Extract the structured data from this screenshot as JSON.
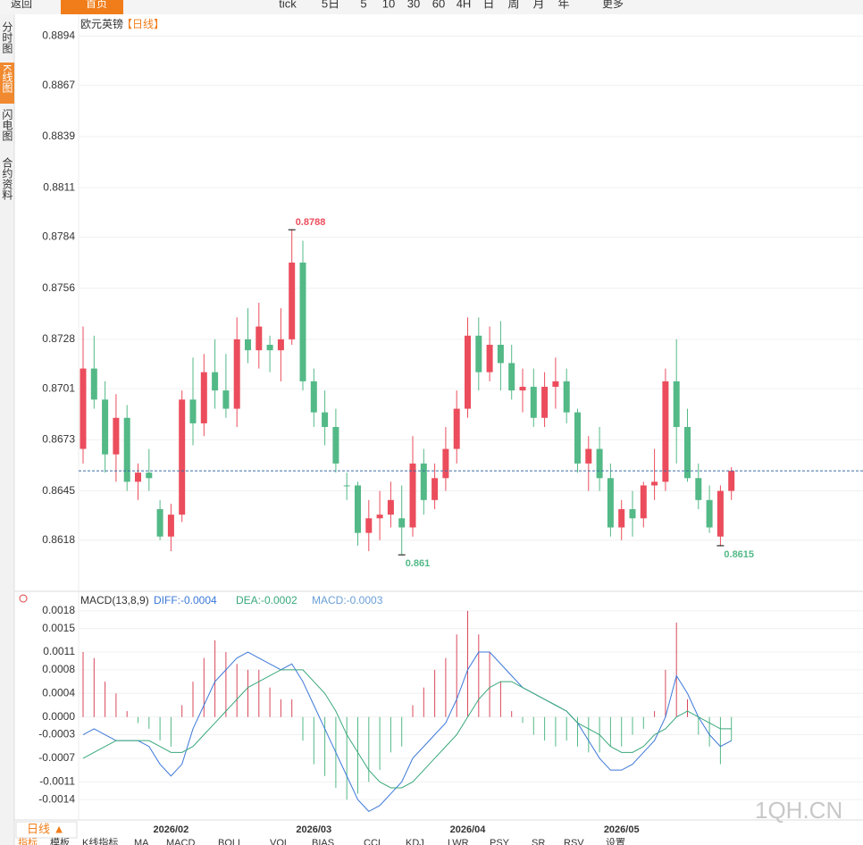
{
  "toolbar": {
    "back": "返回",
    "home": "首页",
    "items": [
      "tick",
      "5日",
      "5",
      "10",
      "30",
      "60",
      "4H",
      "日",
      "周",
      "月",
      "年"
    ],
    "more": "更多"
  },
  "side_tabs": [
    "分时图",
    "K线图",
    "闪电图",
    "合约资料"
  ],
  "chart_data": [
    {
      "type": "candlestick",
      "title": "欧元英镑",
      "period": "【日线】",
      "up_color": "#eb4d5c",
      "down_color": "#53b987",
      "grid": true,
      "categories": [
        null,
        null,
        null,
        null,
        null,
        null,
        null,
        null,
        "2026/02",
        null,
        null,
        null,
        null,
        null,
        null,
        null,
        null,
        null,
        null,
        null,
        null,
        "2026/03",
        null,
        null,
        null,
        null,
        null,
        null,
        null,
        null,
        null,
        null,
        null,
        null,
        null,
        "2026/04",
        null,
        null,
        null,
        null,
        null,
        null,
        null,
        null,
        null,
        null,
        null,
        null,
        null,
        "2026/05",
        null,
        null,
        null,
        null,
        null,
        null,
        null,
        null,
        null,
        null
      ],
      "open": [
        0.8668,
        0.8712,
        0.8695,
        0.8665,
        0.8685,
        0.865,
        0.8655,
        0.8635,
        0.862,
        0.8632,
        0.8695,
        0.8682,
        0.871,
        0.87,
        0.869,
        0.8728,
        0.8722,
        0.8725,
        0.8722,
        0.8728,
        0.877,
        0.8705,
        0.8688,
        0.868,
        0.8648,
        0.8648,
        0.8622,
        0.863,
        0.8632,
        0.863,
        0.8625,
        0.866,
        0.864,
        0.8652,
        0.8668,
        0.869,
        0.873,
        0.871,
        0.8725,
        0.8715,
        0.87,
        0.8702,
        0.8685,
        0.8702,
        0.8705,
        0.8688,
        0.866,
        0.8668,
        0.8652,
        0.8625,
        0.8635,
        0.863,
        0.8648,
        0.865,
        0.8705,
        0.868,
        0.8652,
        0.864,
        0.862,
        0.8645
      ],
      "high": [
        0.8735,
        0.873,
        0.8705,
        0.8698,
        0.8692,
        0.866,
        0.8668,
        0.864,
        0.8638,
        0.87,
        0.8718,
        0.872,
        0.8728,
        0.872,
        0.874,
        0.8745,
        0.8748,
        0.873,
        0.8745,
        0.8788,
        0.8782,
        0.8712,
        0.87,
        0.869,
        0.8655,
        0.865,
        0.864,
        0.8645,
        0.865,
        0.8648,
        0.8675,
        0.8668,
        0.866,
        0.868,
        0.87,
        0.874,
        0.874,
        0.8735,
        0.8738,
        0.8725,
        0.8712,
        0.8712,
        0.871,
        0.8718,
        0.8712,
        0.869,
        0.8675,
        0.868,
        0.866,
        0.864,
        0.8645,
        0.865,
        0.8668,
        0.8712,
        0.8728,
        0.869,
        0.866,
        0.8648,
        0.8648,
        0.8658
      ],
      "low": [
        0.866,
        0.869,
        0.8655,
        0.865,
        0.8645,
        0.864,
        0.8645,
        0.8618,
        0.8612,
        0.8628,
        0.867,
        0.8675,
        0.869,
        0.8685,
        0.868,
        0.8715,
        0.8712,
        0.871,
        0.8705,
        0.8725,
        0.87,
        0.868,
        0.867,
        0.8655,
        0.864,
        0.8615,
        0.8612,
        0.8618,
        0.8625,
        0.861,
        0.862,
        0.8632,
        0.8635,
        0.8645,
        0.866,
        0.8685,
        0.87,
        0.8705,
        0.87,
        0.8695,
        0.8688,
        0.868,
        0.868,
        0.869,
        0.8682,
        0.8655,
        0.8645,
        0.8645,
        0.862,
        0.8618,
        0.862,
        0.8625,
        0.864,
        0.8645,
        0.866,
        0.865,
        0.8635,
        0.8622,
        0.8615,
        0.864
      ],
      "close": [
        0.8712,
        0.8695,
        0.8665,
        0.8685,
        0.865,
        0.8655,
        0.8652,
        0.862,
        0.8632,
        0.8695,
        0.8682,
        0.871,
        0.87,
        0.869,
        0.8728,
        0.8722,
        0.8735,
        0.8722,
        0.8728,
        0.877,
        0.8705,
        0.8688,
        0.868,
        0.866,
        0.8648,
        0.8622,
        0.863,
        0.8632,
        0.864,
        0.8625,
        0.866,
        0.864,
        0.8652,
        0.8668,
        0.869,
        0.873,
        0.871,
        0.8725,
        0.8715,
        0.87,
        0.8702,
        0.8685,
        0.8702,
        0.8705,
        0.8688,
        0.866,
        0.8668,
        0.8652,
        0.8625,
        0.8635,
        0.863,
        0.8648,
        0.865,
        0.8705,
        0.868,
        0.8652,
        0.864,
        0.8625,
        0.8645,
        0.8656
      ],
      "ylim": [
        0.8591,
        0.8904
      ],
      "yticks": [
        0.8894,
        0.8867,
        0.8839,
        0.8811,
        0.8784,
        0.8756,
        0.8728,
        0.8701,
        0.8673,
        0.8645,
        0.8618
      ],
      "annotations": [
        {
          "index": 19,
          "value": 0.8788,
          "color": "#eb4d5c",
          "at": "high"
        },
        {
          "index": 29,
          "value": 0.861,
          "color": "#53b987",
          "at": "low"
        },
        {
          "index": 58,
          "value": 0.8615,
          "color": "#53b987",
          "at": "low"
        }
      ]
    },
    {
      "type": "macd",
      "title": "MACD(13,8,9)",
      "grid": true,
      "ylim": [
        -0.0017,
        0.0021
      ],
      "yticks": [
        0.0018,
        0.0015,
        0.0011,
        0.0008,
        0.0004,
        {
          "value": 0,
          "label": "0.0000"
        },
        -0.0003,
        -0.0007,
        -0.0011,
        -0.0014
      ],
      "series": [
        {
          "label": "DIFF:-0.0004",
          "color": "#3c78d8",
          "values": [
            -0.0003,
            -0.0002,
            -0.0003,
            -0.0004,
            -0.0004,
            -0.0004,
            -0.0005,
            -0.0008,
            -0.001,
            -0.0008,
            -0.0002,
            0.0002,
            0.0006,
            0.0008,
            0.001,
            0.0011,
            0.001,
            0.0009,
            0.0008,
            0.0009,
            0.0006,
            0.0002,
            -0.0002,
            -0.0006,
            -0.001,
            -0.0014,
            -0.0016,
            -0.0015,
            -0.0013,
            -0.0011,
            -0.0007,
            -0.0005,
            -0.0003,
            -0.0001,
            0.0003,
            0.0008,
            0.0011,
            0.0011,
            0.0009,
            0.0007,
            0.0005,
            0.0004,
            0.0003,
            0.0002,
            0.0001,
            -0.0001,
            -0.0004,
            -0.0007,
            -0.0009,
            -0.0009,
            -0.0008,
            -0.0006,
            -0.0004,
            0.0,
            0.0007,
            0.0004,
            0.0,
            -0.0003,
            -0.0005,
            -0.0004
          ]
        },
        {
          "label": "DEA:-0.0002",
          "color": "#3aa87a",
          "values": [
            -0.0007,
            -0.0006,
            -0.0005,
            -0.0004,
            -0.0004,
            -0.0004,
            -0.0004,
            -0.0005,
            -0.0006,
            -0.0006,
            -0.0005,
            -0.0003,
            -0.0001,
            0.0001,
            0.0003,
            0.0005,
            0.0006,
            0.0007,
            0.0008,
            0.0008,
            0.0008,
            0.0006,
            0.0004,
            0.0001,
            -0.0003,
            -0.0006,
            -0.0009,
            -0.0011,
            -0.0012,
            -0.0012,
            -0.0011,
            -0.0009,
            -0.0007,
            -0.0005,
            -0.0003,
            0.0,
            0.0003,
            0.0005,
            0.0006,
            0.0006,
            0.0005,
            0.0004,
            0.0003,
            0.0002,
            0.0001,
            -0.0001,
            -0.0002,
            -0.0003,
            -0.0005,
            -0.0006,
            -0.0006,
            -0.0005,
            -0.0003,
            -0.0002,
            0.0,
            0.0001,
            0.0,
            -0.0001,
            -0.0002,
            -0.0002
          ]
        }
      ],
      "histogram": {
        "label": "MACD:-0.0003",
        "up_color": "#d9485a",
        "down_color": "#53b987",
        "values": [
          0.0011,
          0.001,
          0.0006,
          0.0004,
          0.0001,
          -0.0001,
          -0.0002,
          -0.0004,
          -0.0005,
          0.0002,
          0.0006,
          0.001,
          0.0013,
          0.0011,
          0.0009,
          0.0008,
          0.0008,
          0.0005,
          0.0003,
          0.0003,
          -0.0004,
          -0.0008,
          -0.001,
          -0.0012,
          -0.0014,
          -0.0013,
          -0.0011,
          -0.0009,
          -0.0006,
          -0.0005,
          0.0002,
          0.0005,
          0.0008,
          0.001,
          0.0014,
          0.0018,
          0.0014,
          0.0011,
          0.0006,
          0.0001,
          -0.0001,
          -0.0003,
          -0.0004,
          -0.0005,
          -0.0004,
          -0.0005,
          -0.0006,
          -0.0006,
          -0.0005,
          -0.0005,
          -0.0003,
          -0.0002,
          0.0001,
          0.0008,
          0.0016,
          0.0003,
          -0.0003,
          -0.0005,
          -0.0008,
          -0.0004
        ]
      }
    }
  ],
  "footer": {
    "period": "日线 ▲",
    "tabs": [
      "指标",
      "模板",
      "K线指标",
      "MA",
      "MACD",
      "BOLL",
      "VOL",
      "BIAS",
      "CCI",
      "KDJ",
      "LWR",
      "PSY",
      "SR",
      "RSV",
      "设置"
    ],
    "watermark": "1QH.CN"
  }
}
